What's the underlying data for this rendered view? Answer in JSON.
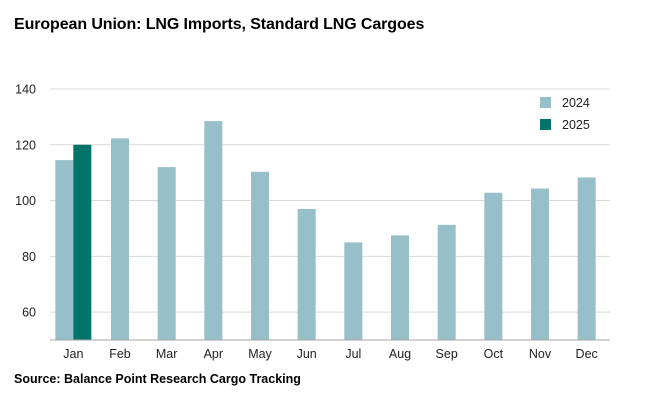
{
  "title": "European Union: LNG Imports, Standard LNG Cargoes",
  "source": "Source: Balance Point Research Cargo Tracking",
  "chart_data": {
    "type": "bar",
    "categories": [
      "Jan",
      "Feb",
      "Mar",
      "Apr",
      "May",
      "Jun",
      "Jul",
      "Aug",
      "Sep",
      "Oct",
      "Nov",
      "Dec"
    ],
    "series": [
      {
        "name": "2024",
        "color": "#97bfc9",
        "values": [
          114.5,
          122.3,
          112,
          128.5,
          110.3,
          97,
          85,
          87.5,
          91.3,
          102.8,
          104.3,
          108.3
        ]
      },
      {
        "name": "2025",
        "color": "#00736a",
        "values": [
          120,
          null,
          null,
          null,
          null,
          null,
          null,
          null,
          null,
          null,
          null,
          null
        ]
      }
    ],
    "ylim": [
      50,
      140
    ],
    "yticks": [
      60,
      80,
      100,
      120,
      140
    ],
    "grid": true,
    "legend_position": "top-right"
  }
}
